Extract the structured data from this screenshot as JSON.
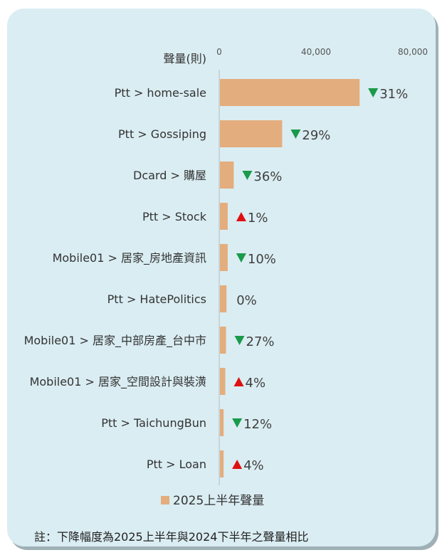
{
  "chart_data": {
    "type": "bar",
    "orientation": "horizontal",
    "ylabel": "聲量(則)",
    "xlim": [
      0,
      80000
    ],
    "xticks": [
      {
        "value": 0,
        "label": "0"
      },
      {
        "value": 40000,
        "label": "40,000"
      },
      {
        "value": 80000,
        "label": "80,000"
      }
    ],
    "grid": false,
    "legend_position": "bottom",
    "categories": [
      "Ptt > home-sale",
      "Ptt > Gossiping",
      "Dcard > 購屋",
      "Ptt > Stock",
      "Mobile01 > 居家_房地產資訊",
      "Ptt > HatePolitics",
      "Mobile01 > 居家_中部房產_台中市",
      "Mobile01 > 居家_空間設計與裝潢",
      "Ptt > TaichungBun",
      "Ptt > Loan"
    ],
    "series": [
      {
        "name": "2025上半年聲量",
        "color": "#e3ad7d",
        "values": [
          58000,
          26000,
          6000,
          3500,
          3500,
          3000,
          2800,
          2500,
          1800,
          1800
        ]
      }
    ],
    "changes": [
      {
        "label": "31%",
        "direction": "down"
      },
      {
        "label": "29%",
        "direction": "down"
      },
      {
        "label": "36%",
        "direction": "down"
      },
      {
        "label": "1%",
        "direction": "up"
      },
      {
        "label": "10%",
        "direction": "down"
      },
      {
        "label": "0%",
        "direction": "none"
      },
      {
        "label": "27%",
        "direction": "down"
      },
      {
        "label": "4%",
        "direction": "up"
      },
      {
        "label": "12%",
        "direction": "down"
      },
      {
        "label": "4%",
        "direction": "up"
      }
    ],
    "colors": {
      "down": "#1a9a4a",
      "up": "#e01010",
      "axis": "#bbbbbb"
    }
  },
  "note": "註：下降幅度為2025上半年與2024下半年之聲量相比"
}
